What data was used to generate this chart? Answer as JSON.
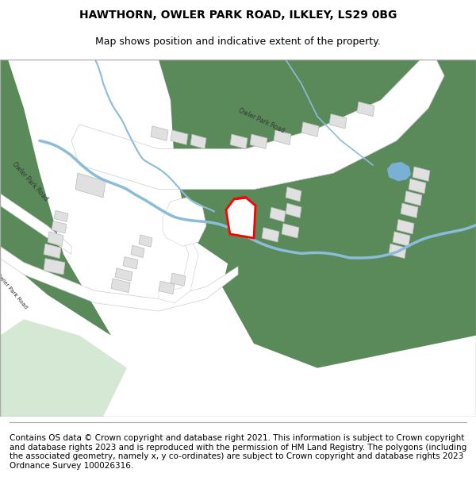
{
  "title": "HAWTHORN, OWLER PARK ROAD, ILKLEY, LS29 0BG",
  "subtitle": "Map shows position and indicative extent of the property.",
  "footer": "Contains OS data © Crown copyright and database right 2021. This information is subject to Crown copyright and database rights 2023 and is reproduced with the permission of HM Land Registry. The polygons (including the associated geometry, namely x, y co-ordinates) are subject to Crown copyright and database rights 2023 Ordnance Survey 100026316.",
  "title_fontsize": 10,
  "subtitle_fontsize": 9,
  "footer_fontsize": 7.5,
  "bg_color": "#ffffff",
  "map_bg": "#f5f5f5",
  "green_dark": "#5a8a5a",
  "green_light": "#c8dfc8",
  "road_color": "#ffffff",
  "road_stroke": "#cccccc",
  "building_color": "#e8e8e8",
  "building_stroke": "#c0c0c0",
  "water_color": "#a8c8e8",
  "pond_color": "#7ab0d4",
  "highlight_color": "#ff0000",
  "highlight_fill": "#ffffff"
}
